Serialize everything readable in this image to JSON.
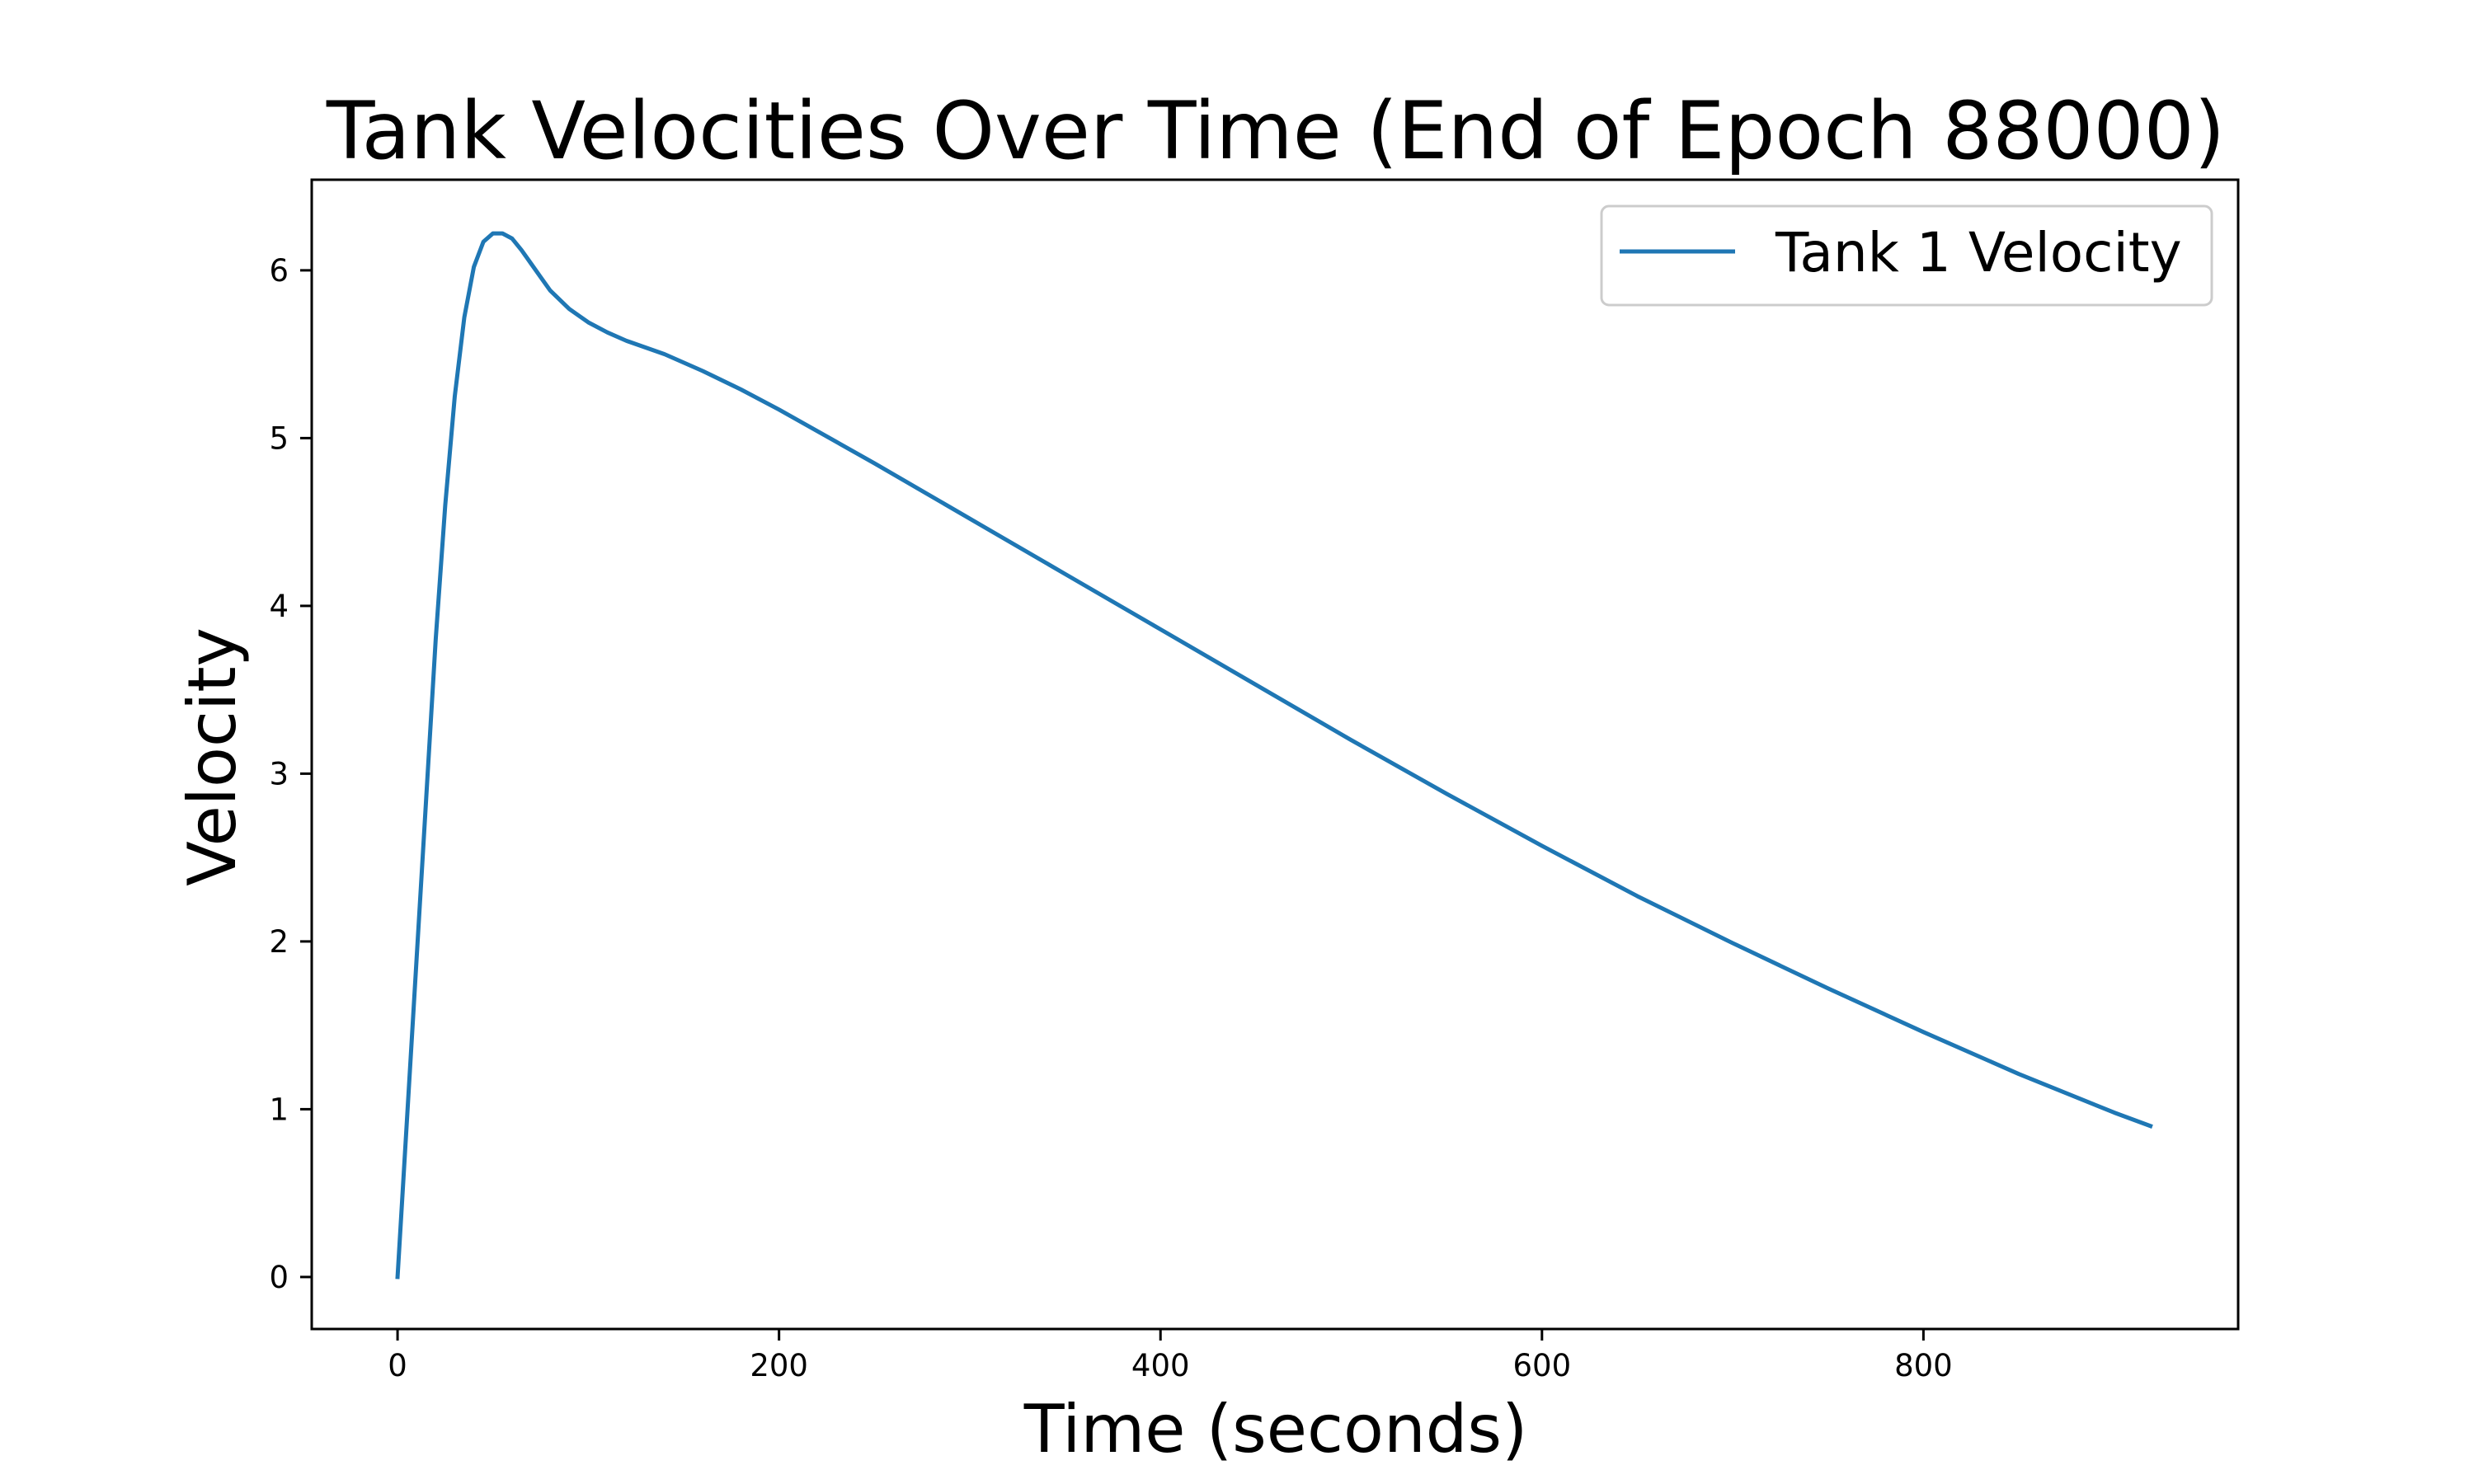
{
  "chart_data": {
    "type": "line",
    "title": "Tank Velocities Over Time (End of Epoch 88000)",
    "xlabel": "Time (seconds)",
    "ylabel": "Velocity",
    "xlim": [
      -45,
      965
    ],
    "ylim": [
      -0.31,
      6.54
    ],
    "xticks": [
      0,
      200,
      400,
      600,
      800
    ],
    "yticks": [
      0,
      1,
      2,
      3,
      4,
      5,
      6
    ],
    "grid": false,
    "legend_position": "top-right",
    "series": [
      {
        "name": "Tank 1 Velocity",
        "color": "#1f77b4",
        "x": [
          0,
          5,
          10,
          15,
          20,
          25,
          30,
          35,
          40,
          45,
          50,
          55,
          60,
          65,
          70,
          75,
          80,
          90,
          100,
          110,
          120,
          140,
          160,
          180,
          200,
          250,
          300,
          350,
          400,
          450,
          500,
          550,
          600,
          650,
          700,
          750,
          800,
          850,
          900,
          919
        ],
        "y": [
          0,
          0.95,
          1.9,
          2.85,
          3.8,
          4.6,
          5.25,
          5.72,
          6.02,
          6.17,
          6.22,
          6.22,
          6.19,
          6.12,
          6.04,
          5.96,
          5.88,
          5.77,
          5.69,
          5.63,
          5.58,
          5.5,
          5.4,
          5.29,
          5.17,
          4.85,
          4.52,
          4.19,
          3.86,
          3.53,
          3.2,
          2.88,
          2.57,
          2.27,
          1.99,
          1.72,
          1.46,
          1.21,
          0.98,
          0.9
        ]
      }
    ]
  }
}
